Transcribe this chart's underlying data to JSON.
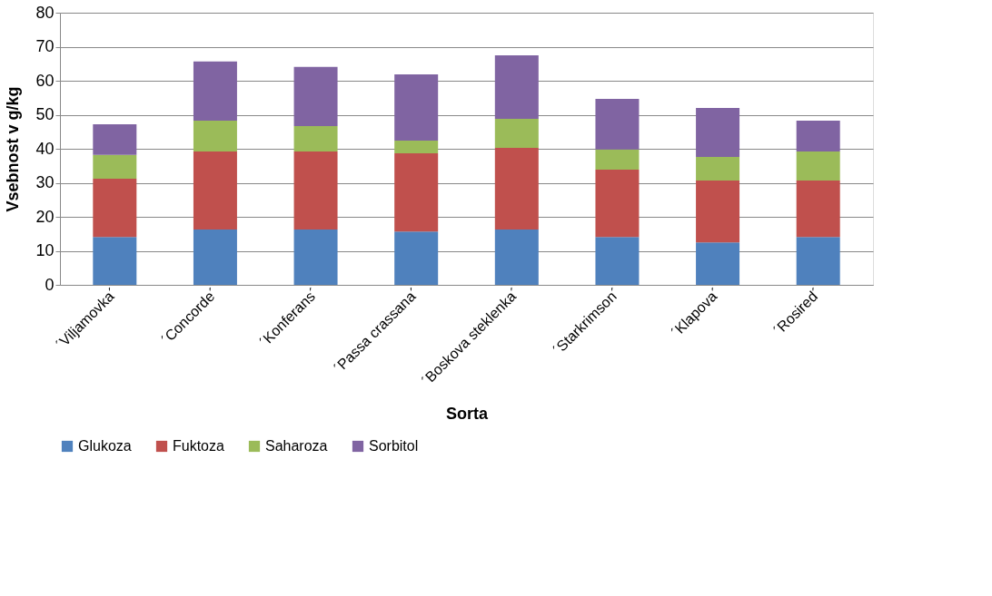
{
  "chart_data": {
    "type": "bar",
    "stacked": true,
    "xlabel": "Sorta",
    "ylabel": "Vsebnost v g/kg",
    "categories": [
      "´Viljamovka´",
      "´Concorde´",
      "´Konferans´",
      "´Passa crassana´",
      "´Boskova steklenka´",
      "´Starkrimson´",
      "´Klapova´",
      "´Rosired´"
    ],
    "series": [
      {
        "name": "Glukoza",
        "color": "#4f81bd",
        "values": [
          14.1,
          16.3,
          16.3,
          15.7,
          16.3,
          14.1,
          12.5,
          14.1
        ]
      },
      {
        "name": "Fuktoza",
        "color": "#c0504d",
        "values": [
          17.1,
          22.9,
          22.9,
          23.0,
          24.0,
          19.8,
          18.2,
          16.6
        ]
      },
      {
        "name": "Saharoza",
        "color": "#9bbb59",
        "values": [
          7.0,
          9.1,
          7.5,
          3.7,
          8.5,
          5.9,
          6.9,
          8.5
        ]
      },
      {
        "name": "Sorbitol",
        "color": "#8064a2",
        "values": [
          9.0,
          17.4,
          17.4,
          19.5,
          18.7,
          14.9,
          14.4,
          9.1
        ]
      }
    ],
    "ylim": [
      0,
      80
    ],
    "yticks": [
      0,
      10,
      20,
      30,
      40,
      50,
      60,
      70,
      80
    ],
    "grid": "y",
    "legend": "bottom"
  }
}
